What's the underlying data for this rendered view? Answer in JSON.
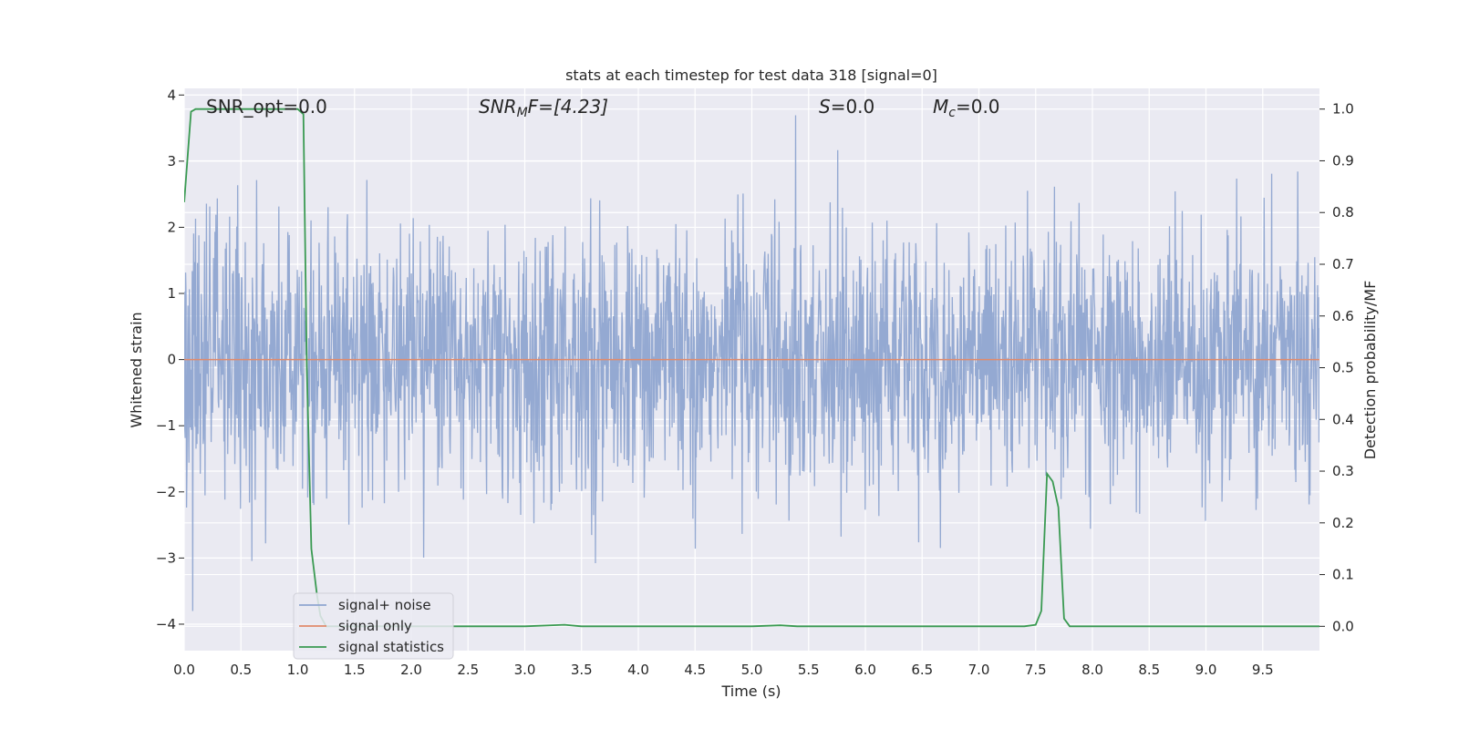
{
  "chart_data": {
    "type": "line",
    "title": "stats at each timestep for test data 318 [signal=0]",
    "xlabel": "Time (s)",
    "ylabel": "Whitened strain",
    "y2label": "Detection probability/MF",
    "xlim": [
      0.0,
      10.0
    ],
    "ylim": [
      -4.4,
      4.1
    ],
    "y2lim": [
      -0.047,
      1.04
    ],
    "x_ticks": [
      0.0,
      0.5,
      1.0,
      1.5,
      2.0,
      2.5,
      3.0,
      3.5,
      4.0,
      4.5,
      5.0,
      5.5,
      6.0,
      6.5,
      7.0,
      7.5,
      8.0,
      8.5,
      9.0,
      9.5
    ],
    "x_tick_labels": [
      "0.0",
      "0.5",
      "1.0",
      "1.5",
      "2.0",
      "2.5",
      "3.0",
      "3.5",
      "4.0",
      "4.5",
      "5.0",
      "5.5",
      "6.0",
      "6.5",
      "7.0",
      "7.5",
      "8.0",
      "8.5",
      "9.0",
      "9.5"
    ],
    "y_ticks": [
      -4,
      -3,
      -2,
      -1,
      0,
      1,
      2,
      3,
      4
    ],
    "y_tick_labels": [
      "−4",
      "−3",
      "−2",
      "−1",
      "0",
      "1",
      "2",
      "3",
      "4"
    ],
    "y2_ticks": [
      0.0,
      0.1,
      0.2,
      0.3,
      0.4,
      0.5,
      0.6,
      0.7,
      0.8,
      0.9,
      1.0
    ],
    "y2_tick_labels": [
      "0.0",
      "0.1",
      "0.2",
      "0.3",
      "0.4",
      "0.5",
      "0.6",
      "0.7",
      "0.8",
      "0.9",
      "1.0"
    ],
    "grid": true,
    "legend_position": "lower-left",
    "annotations": {
      "snr_opt": "SNR_opt=0.0",
      "snr_mf_main": "SNR",
      "snr_mf_sub": "M",
      "snr_mf_rest": "F=[4.23]",
      "s_main": "S",
      "s_rest": "=0.0",
      "mc_main": "M",
      "mc_sub": "c",
      "mc_rest": "=0.0"
    },
    "series": [
      {
        "name": "signal+ noise",
        "color": "#8fa5d0",
        "axis": "left",
        "noise_std": 1.0,
        "approx_range": [
          -3.8,
          3.7
        ]
      },
      {
        "name": "signal only",
        "color": "#e08a6c",
        "axis": "left",
        "x": [
          0.0,
          10.0
        ],
        "y": [
          0.0,
          0.0
        ]
      },
      {
        "name": "signal statistics",
        "color": "#3a9a52",
        "axis": "right",
        "x": [
          0.0,
          0.06,
          0.1,
          0.5,
          0.9,
          1.0,
          1.05,
          1.08,
          1.12,
          1.17,
          1.2,
          1.25,
          2.0,
          3.0,
          3.35,
          3.5,
          4.0,
          5.0,
          5.25,
          5.4,
          6.0,
          7.0,
          7.4,
          7.5,
          7.55,
          7.6,
          7.65,
          7.7,
          7.75,
          7.8,
          8.0,
          10.0
        ],
        "y": [
          0.82,
          0.995,
          1.0,
          1.0,
          1.0,
          1.0,
          0.99,
          0.5,
          0.15,
          0.06,
          0.02,
          0.0,
          0.0,
          0.0,
          0.003,
          0.0,
          0.0,
          0.0,
          0.002,
          0.0,
          0.0,
          0.0,
          0.0,
          0.003,
          0.03,
          0.295,
          0.28,
          0.23,
          0.015,
          0.0,
          0.0,
          0.0
        ]
      }
    ]
  }
}
